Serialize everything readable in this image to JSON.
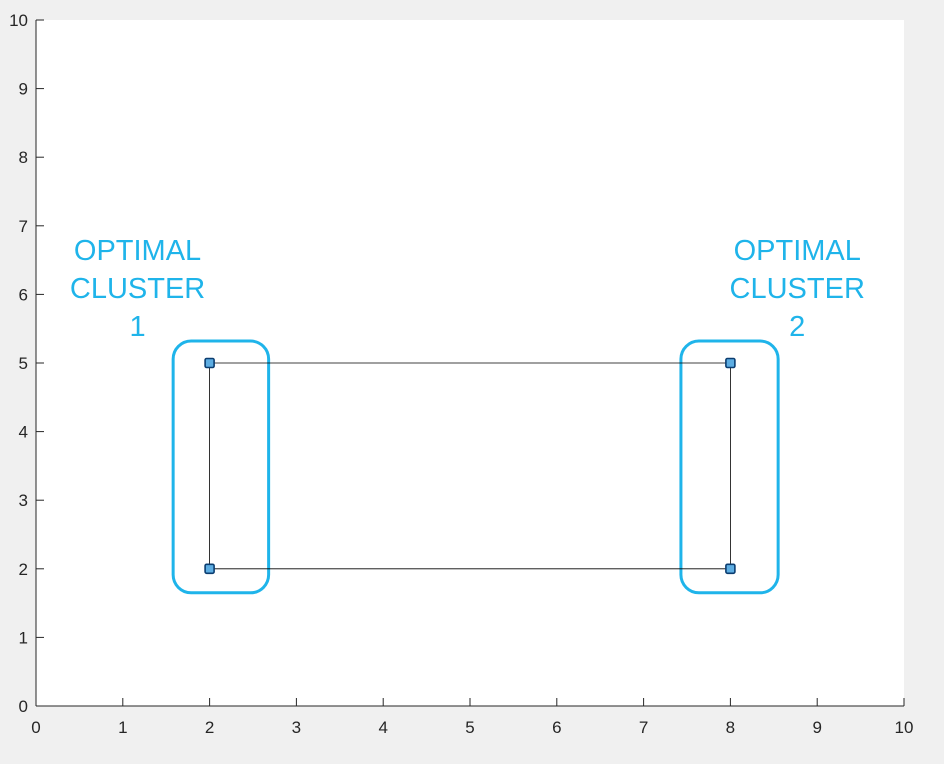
{
  "chart_data": {
    "type": "scatter",
    "xlim": [
      0,
      10
    ],
    "ylim": [
      0,
      10
    ],
    "x_ticks": [
      "0",
      "1",
      "2",
      "3",
      "4",
      "5",
      "6",
      "7",
      "8",
      "9",
      "10"
    ],
    "y_ticks": [
      "0",
      "1",
      "2",
      "3",
      "4",
      "5",
      "6",
      "7",
      "8",
      "9",
      "10"
    ],
    "grid": false,
    "points": [
      {
        "x": 2,
        "y": 5
      },
      {
        "x": 2,
        "y": 2
      },
      {
        "x": 8,
        "y": 5
      },
      {
        "x": 8,
        "y": 2
      }
    ],
    "edges": [
      {
        "from": [
          2,
          5
        ],
        "to": [
          8,
          5
        ]
      },
      {
        "from": [
          2,
          2
        ],
        "to": [
          8,
          2
        ]
      },
      {
        "from": [
          2,
          2
        ],
        "to": [
          2,
          5
        ]
      },
      {
        "from": [
          8,
          2
        ],
        "to": [
          8,
          5
        ]
      }
    ],
    "clusters": [
      {
        "label_lines": [
          "OPTIMAL",
          "CLUSTER",
          "1"
        ],
        "x_range": [
          1.58,
          2.68
        ],
        "y_range": [
          1.65,
          5.32
        ],
        "label_x": 1.17,
        "label_y": 6.65
      },
      {
        "label_lines": [
          "OPTIMAL",
          "CLUSTER",
          "2"
        ],
        "x_range": [
          7.43,
          8.55
        ],
        "y_range": [
          1.65,
          5.32
        ],
        "label_x": 8.77,
        "label_y": 6.65
      }
    ],
    "colors": {
      "cluster": "#1fb4ea",
      "marker_face": "#5dade2",
      "marker_edge": "#0b3d70",
      "edge": "#000000",
      "axes": "#262626",
      "plot_background": "#ffffff",
      "figure_background": "#f0f0f0"
    }
  }
}
